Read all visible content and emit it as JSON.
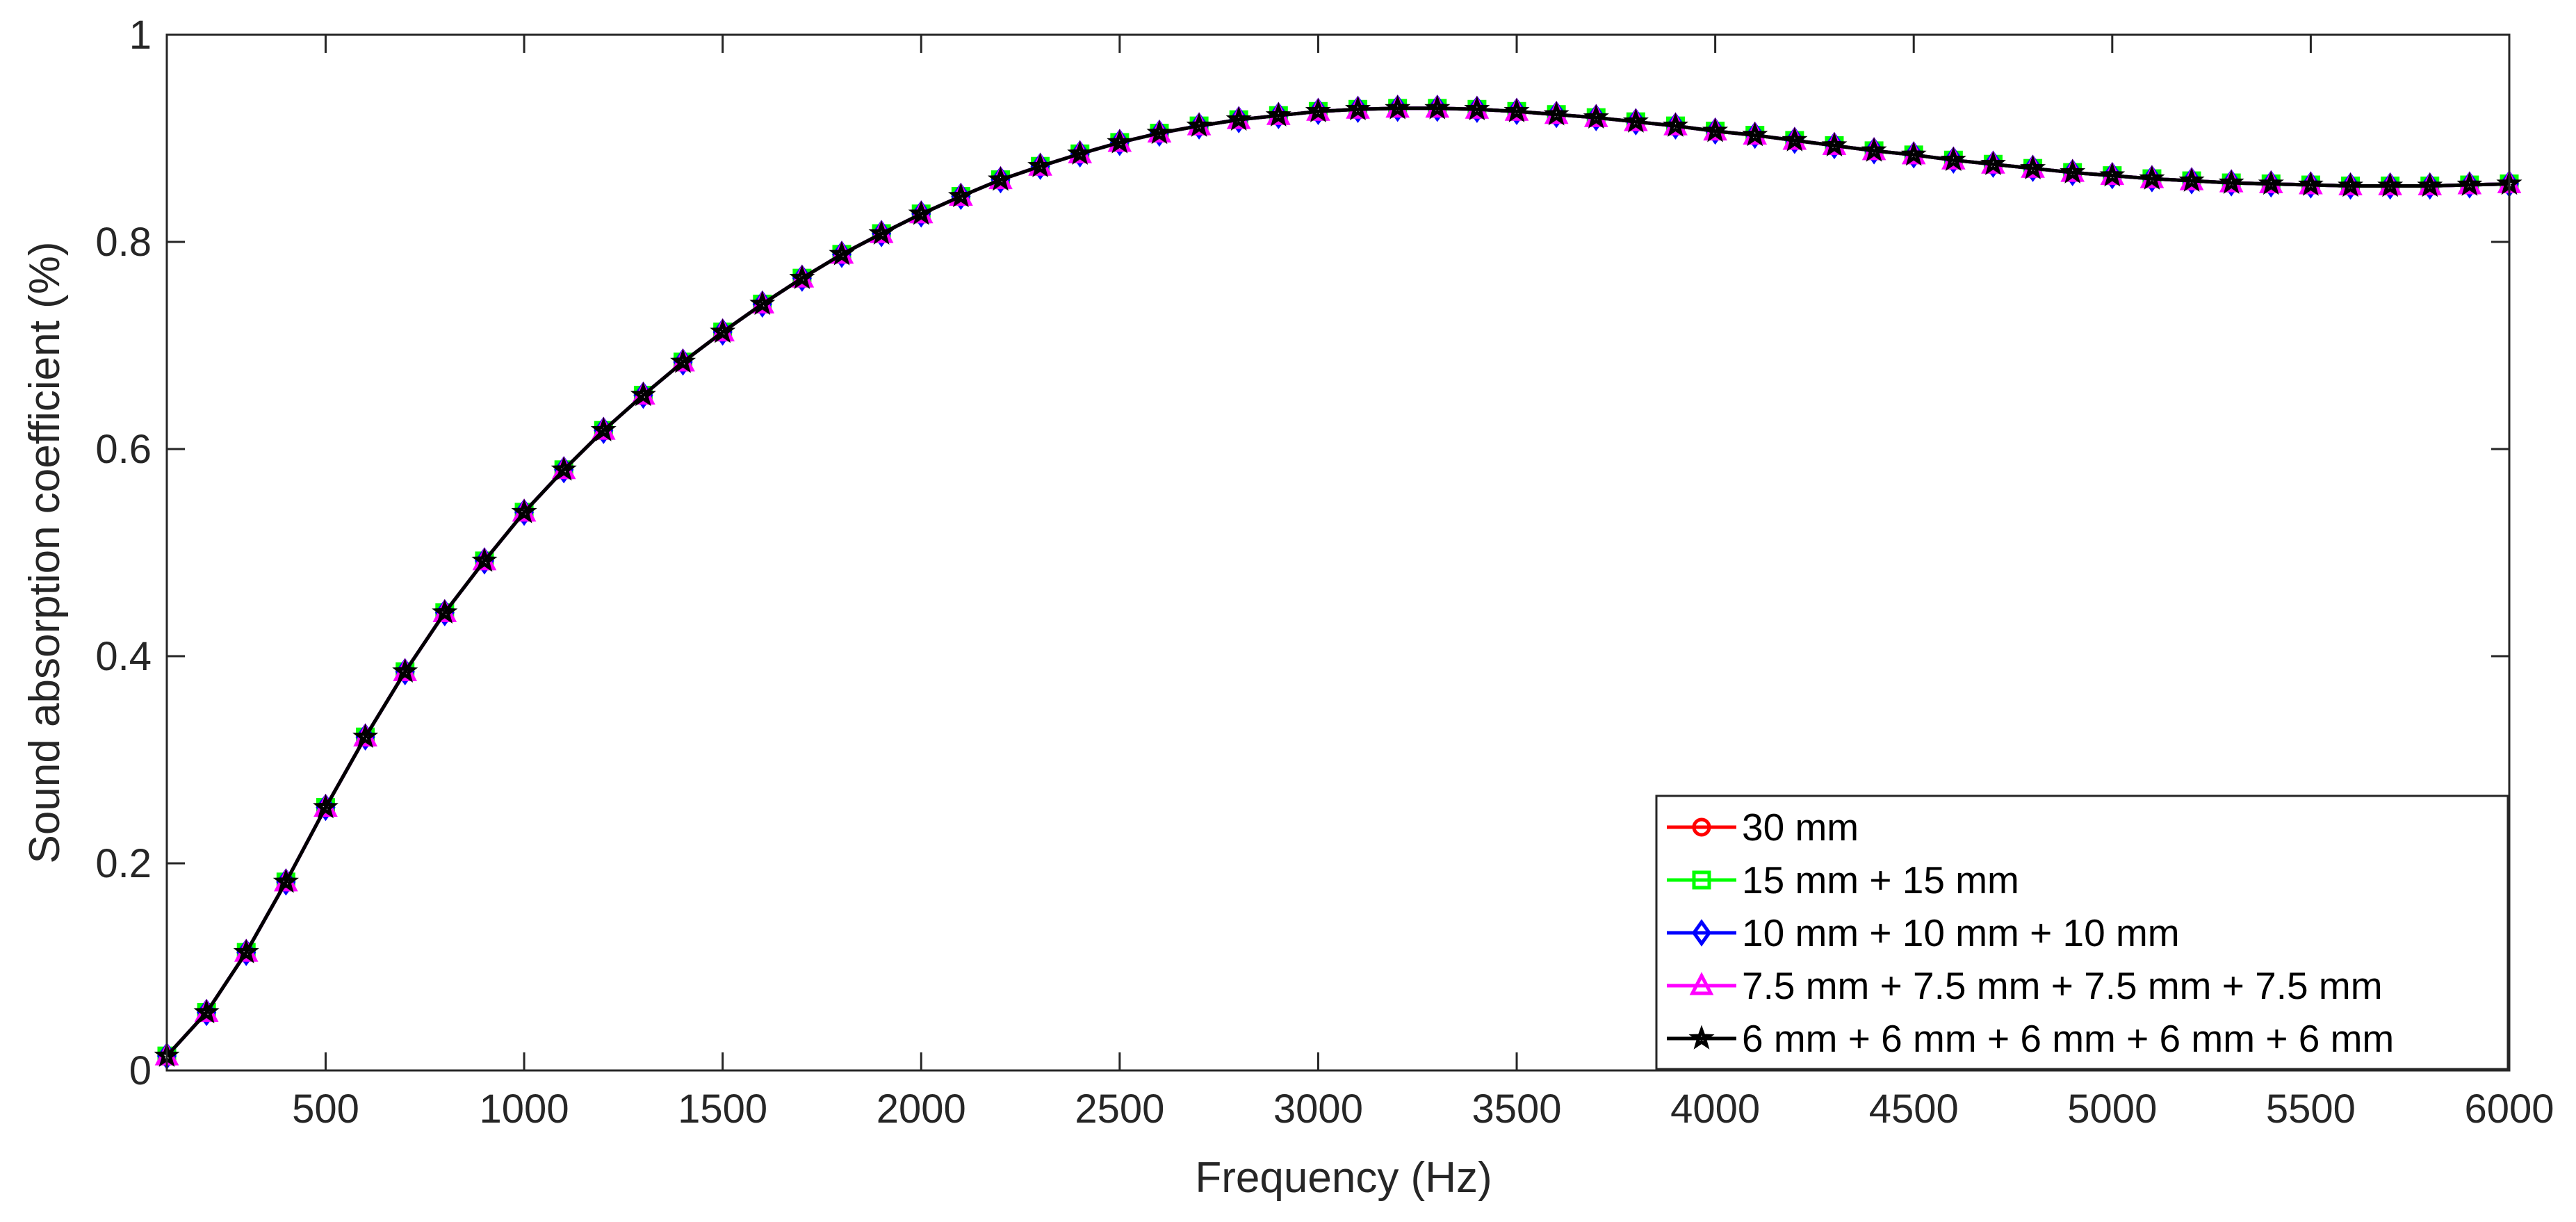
{
  "chart_data": {
    "type": "line",
    "title": "",
    "xlabel": "Frequency (Hz)",
    "ylabel": "Sound absorption coefficient (%)",
    "xlim": [
      100,
      6000
    ],
    "ylim": [
      0,
      1
    ],
    "xticks": [
      500,
      1000,
      1500,
      2000,
      2500,
      3000,
      3500,
      4000,
      4500,
      5000,
      5500,
      6000
    ],
    "xtick_labels": [
      "500",
      "1000",
      "1500",
      "2000",
      "2500",
      "3000",
      "3500",
      "4000",
      "4500",
      "5000",
      "5500",
      "6000"
    ],
    "yticks": [
      0,
      0.2,
      0.4,
      0.6,
      0.8,
      1
    ],
    "ytick_labels": [
      "0",
      "0.2",
      "0.4",
      "0.6",
      "0.8",
      "1"
    ],
    "grid": false,
    "legend_position": "bottom-right",
    "x": [
      100,
      200,
      300,
      400,
      500,
      600,
      700,
      800,
      900,
      1000,
      1100,
      1200,
      1300,
      1400,
      1500,
      1600,
      1700,
      1800,
      1900,
      2000,
      2100,
      2200,
      2300,
      2400,
      2500,
      2600,
      2700,
      2800,
      2900,
      3000,
      3100,
      3200,
      3300,
      3400,
      3500,
      3600,
      3700,
      3800,
      3900,
      4000,
      4100,
      4200,
      4300,
      4400,
      4500,
      4600,
      4700,
      4800,
      4900,
      5000,
      5100,
      5200,
      5300,
      5400,
      5500,
      5600,
      5700,
      5800,
      5900,
      6000
    ],
    "series": [
      {
        "name": "30 mm",
        "color": "#ff0000",
        "marker": "circle",
        "values": [
          0.014,
          0.056,
          0.114,
          0.182,
          0.254,
          0.322,
          0.385,
          0.442,
          0.492,
          0.539,
          0.58,
          0.618,
          0.652,
          0.684,
          0.713,
          0.74,
          0.765,
          0.788,
          0.808,
          0.827,
          0.844,
          0.86,
          0.873,
          0.885,
          0.896,
          0.905,
          0.912,
          0.918,
          0.922,
          0.926,
          0.928,
          0.929,
          0.929,
          0.928,
          0.926,
          0.923,
          0.92,
          0.916,
          0.912,
          0.907,
          0.903,
          0.898,
          0.893,
          0.888,
          0.884,
          0.879,
          0.875,
          0.871,
          0.867,
          0.864,
          0.861,
          0.859,
          0.857,
          0.856,
          0.855,
          0.854,
          0.854,
          0.854,
          0.855,
          0.856
        ]
      },
      {
        "name": "15 mm + 15 mm",
        "color": "#00ff00",
        "marker": "square",
        "values": [
          0.014,
          0.056,
          0.114,
          0.182,
          0.254,
          0.322,
          0.385,
          0.442,
          0.492,
          0.539,
          0.58,
          0.618,
          0.652,
          0.684,
          0.713,
          0.74,
          0.765,
          0.788,
          0.808,
          0.827,
          0.844,
          0.86,
          0.873,
          0.885,
          0.896,
          0.905,
          0.912,
          0.918,
          0.922,
          0.926,
          0.928,
          0.929,
          0.929,
          0.928,
          0.926,
          0.923,
          0.92,
          0.916,
          0.912,
          0.907,
          0.903,
          0.898,
          0.893,
          0.888,
          0.884,
          0.879,
          0.875,
          0.871,
          0.867,
          0.864,
          0.861,
          0.859,
          0.857,
          0.856,
          0.855,
          0.854,
          0.854,
          0.854,
          0.855,
          0.856
        ]
      },
      {
        "name": "10 mm + 10 mm + 10 mm",
        "color": "#0000ff",
        "marker": "diamond",
        "values": [
          0.014,
          0.056,
          0.114,
          0.182,
          0.254,
          0.322,
          0.385,
          0.442,
          0.492,
          0.539,
          0.58,
          0.618,
          0.652,
          0.684,
          0.713,
          0.74,
          0.765,
          0.788,
          0.808,
          0.827,
          0.844,
          0.86,
          0.873,
          0.885,
          0.896,
          0.905,
          0.912,
          0.918,
          0.922,
          0.926,
          0.928,
          0.929,
          0.929,
          0.928,
          0.926,
          0.923,
          0.92,
          0.916,
          0.912,
          0.907,
          0.903,
          0.898,
          0.893,
          0.888,
          0.884,
          0.879,
          0.875,
          0.871,
          0.867,
          0.864,
          0.861,
          0.859,
          0.857,
          0.856,
          0.855,
          0.854,
          0.854,
          0.854,
          0.855,
          0.856
        ]
      },
      {
        "name": "7.5 mm + 7.5 mm + 7.5 mm + 7.5 mm",
        "color": "#ff00ff",
        "marker": "triangle",
        "values": [
          0.014,
          0.056,
          0.114,
          0.182,
          0.254,
          0.322,
          0.385,
          0.442,
          0.492,
          0.539,
          0.58,
          0.618,
          0.652,
          0.684,
          0.713,
          0.74,
          0.765,
          0.788,
          0.808,
          0.827,
          0.844,
          0.86,
          0.873,
          0.885,
          0.896,
          0.905,
          0.912,
          0.918,
          0.922,
          0.926,
          0.928,
          0.929,
          0.929,
          0.928,
          0.926,
          0.923,
          0.92,
          0.916,
          0.912,
          0.907,
          0.903,
          0.898,
          0.893,
          0.888,
          0.884,
          0.879,
          0.875,
          0.871,
          0.867,
          0.864,
          0.861,
          0.859,
          0.857,
          0.856,
          0.855,
          0.854,
          0.854,
          0.854,
          0.855,
          0.856
        ]
      },
      {
        "name": "6 mm + 6 mm + 6 mm + 6 mm + 6 mm",
        "color": "#000000",
        "marker": "star",
        "values": [
          0.014,
          0.056,
          0.114,
          0.182,
          0.254,
          0.322,
          0.385,
          0.442,
          0.492,
          0.539,
          0.58,
          0.618,
          0.652,
          0.684,
          0.713,
          0.74,
          0.765,
          0.788,
          0.808,
          0.827,
          0.844,
          0.86,
          0.873,
          0.885,
          0.896,
          0.905,
          0.912,
          0.918,
          0.922,
          0.926,
          0.928,
          0.929,
          0.929,
          0.928,
          0.926,
          0.923,
          0.92,
          0.916,
          0.912,
          0.907,
          0.903,
          0.898,
          0.893,
          0.888,
          0.884,
          0.879,
          0.875,
          0.871,
          0.867,
          0.864,
          0.861,
          0.859,
          0.857,
          0.856,
          0.855,
          0.854,
          0.854,
          0.854,
          0.855,
          0.856
        ]
      }
    ]
  }
}
